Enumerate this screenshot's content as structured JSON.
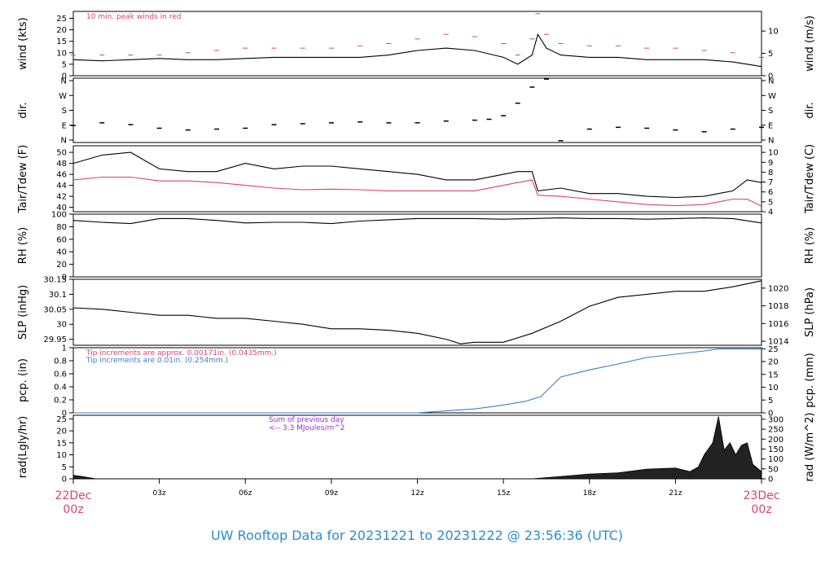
{
  "footer": {
    "title": "UW Rooftop Data for 20231221  to  20231222 @ 23:56:36  (UTC)"
  },
  "x_axis": {
    "ticks": [
      "03z",
      "06z",
      "09z",
      "12z",
      "15z",
      "18z",
      "21z"
    ],
    "start_label": [
      "22Dec",
      "00z"
    ],
    "end_label": [
      "23Dec",
      "00z"
    ]
  },
  "colors": {
    "red": "#d6456a",
    "blue": "#3a7fc6",
    "purple": "#9b30c9",
    "black": "#000000"
  },
  "chart_data": [
    {
      "type": "line",
      "id": "wind",
      "ylabel": "wind (kts)",
      "ylabel_right": "wind (m/s)",
      "ylim": [
        0,
        28
      ],
      "yticks": [
        0,
        5,
        10,
        15,
        20,
        25
      ],
      "right_ylim": [
        0,
        14.4
      ],
      "right_ticks": [
        0,
        5,
        10
      ],
      "annotations": [
        {
          "text": "10 min. peak winds in red",
          "color": "#d6456a"
        }
      ],
      "x_hours": [
        0,
        1,
        2,
        3,
        4,
        5,
        6,
        7,
        8,
        9,
        10,
        11,
        12,
        13,
        14,
        15,
        15.5,
        16,
        16.2,
        16.5,
        17,
        18,
        19,
        20,
        21,
        22,
        23,
        24
      ],
      "series": [
        {
          "name": "wind",
          "values": [
            7,
            6.5,
            7,
            7.5,
            7,
            7,
            7.5,
            8,
            8,
            8,
            8,
            9,
            11,
            12,
            11,
            8,
            5,
            9,
            18,
            12,
            9,
            8,
            8,
            7,
            7,
            7,
            6,
            4
          ]
        },
        {
          "name": "10 min. peak winds",
          "values": [
            9,
            9,
            9,
            9,
            10,
            11,
            12,
            12,
            12,
            12,
            13,
            14,
            16,
            18,
            17,
            14,
            9,
            16,
            27,
            18,
            14,
            13,
            13,
            12,
            12,
            11,
            10,
            8
          ]
        }
      ]
    },
    {
      "type": "scatter",
      "id": "dir",
      "ylabel": "dir.",
      "ylabel_right": "dir.",
      "ylim": [
        0,
        360
      ],
      "ytick_labels": [
        "N",
        "E",
        "S",
        "W",
        "N"
      ],
      "x_hours": [
        0,
        1,
        2,
        3,
        4,
        5,
        6,
        7,
        8,
        9,
        10,
        11,
        12,
        13,
        14,
        14.5,
        15,
        15.5,
        16,
        16.5,
        17,
        18,
        19,
        20,
        21,
        22,
        23,
        24
      ],
      "series": [
        {
          "name": "direction",
          "values": [
            95,
            110,
            100,
            80,
            70,
            75,
            80,
            100,
            105,
            110,
            115,
            110,
            110,
            120,
            125,
            130,
            150,
            220,
            310,
            355,
            10,
            75,
            85,
            80,
            70,
            60,
            75,
            85
          ]
        }
      ]
    },
    {
      "type": "line",
      "id": "temp",
      "ylabel": "Tair/Tdew (F)",
      "ylabel_right": "Tair/Tdew (C)",
      "ylim": [
        39.2,
        51.2
      ],
      "yticks": [
        40,
        42,
        44,
        46,
        48,
        50
      ],
      "right_ticks": [
        4,
        5,
        6,
        7,
        8,
        9,
        10
      ],
      "x_hours": [
        0,
        1,
        2,
        3,
        4,
        5,
        6,
        7,
        8,
        9,
        10,
        11,
        12,
        13,
        14,
        15,
        15.5,
        16,
        16.2,
        17,
        18,
        19,
        20,
        21,
        22,
        22.5,
        23,
        23.5,
        24
      ],
      "series": [
        {
          "name": "Tair",
          "values": [
            48,
            49.5,
            50,
            47,
            46.5,
            46.5,
            48,
            47,
            47.5,
            47.5,
            47,
            46.5,
            46,
            45,
            45,
            46,
            46.5,
            46.5,
            43,
            43.5,
            42.5,
            42.5,
            42,
            41.8,
            42,
            42.5,
            43,
            45,
            44.5
          ]
        },
        {
          "name": "Tdew",
          "values": [
            45,
            45.5,
            45.5,
            44.8,
            44.8,
            44.5,
            44,
            43.5,
            43.2,
            43.3,
            43.2,
            43,
            43,
            43,
            43,
            44,
            44.5,
            45,
            42.2,
            42,
            41.5,
            41,
            40.5,
            40.3,
            40.5,
            41,
            41.5,
            41.5,
            40.2
          ]
        }
      ]
    },
    {
      "type": "line",
      "id": "rh",
      "ylabel": "RH (%)",
      "ylabel_right": "RH (%)",
      "ylim": [
        0,
        100
      ],
      "yticks": [
        0,
        20,
        40,
        60,
        80,
        100
      ],
      "x_hours": [
        0,
        1,
        2,
        3,
        4,
        5,
        6,
        7,
        8,
        9,
        10,
        11,
        12,
        13,
        14,
        15,
        16,
        17,
        18,
        19,
        20,
        21,
        22,
        23,
        24
      ],
      "series": [
        {
          "name": "RH",
          "values": [
            90,
            87,
            85,
            93,
            93,
            90,
            86,
            87,
            87,
            85,
            89,
            91,
            93,
            93,
            93,
            92,
            93,
            94,
            93,
            93,
            92,
            93,
            94,
            93,
            86
          ]
        }
      ]
    },
    {
      "type": "line",
      "id": "slp",
      "ylabel": "SLP (inHg)",
      "ylabel_right": "SLP (hPa)",
      "ylim": [
        29.93,
        30.15
      ],
      "yticks": [
        29.95,
        30.0,
        30.05,
        30.1,
        30.15
      ],
      "right_ticks": [
        1014,
        1016,
        1018,
        1020
      ],
      "x_hours": [
        0,
        1,
        2,
        3,
        4,
        5,
        6,
        7,
        8,
        9,
        10,
        11,
        12,
        13,
        13.5,
        14,
        15,
        16,
        17,
        18,
        19,
        20,
        21,
        22,
        23,
        24
      ],
      "series": [
        {
          "name": "SLP",
          "values": [
            30.055,
            30.05,
            30.04,
            30.03,
            30.03,
            30.02,
            30.02,
            30.01,
            30.0,
            29.985,
            29.985,
            29.98,
            29.97,
            29.95,
            29.935,
            29.94,
            29.94,
            29.97,
            30.01,
            30.06,
            30.09,
            30.1,
            30.11,
            30.11,
            30.125,
            30.145
          ]
        }
      ]
    },
    {
      "type": "line",
      "id": "pcp",
      "ylabel": "pcp. (in)",
      "ylabel_right": "pcp. (mm)",
      "ylim": [
        0,
        1.0
      ],
      "yticks": [
        0.0,
        0.2,
        0.4,
        0.6,
        0.8,
        1.0
      ],
      "right_ticks": [
        0,
        5,
        10,
        15,
        20,
        25
      ],
      "annotations": [
        {
          "text": "Tip increments are approx. 0.00171in. (0.0435mm.)",
          "color": "#d6456a"
        },
        {
          "text": "Tip increments are 0.01in. (0.254mm.)",
          "color": "#3a7fc6"
        }
      ],
      "x_hours": [
        0,
        12,
        13,
        14,
        15,
        15.8,
        16.3,
        16.7,
        17,
        18,
        19,
        20,
        21,
        22,
        22.5,
        23,
        24
      ],
      "series": [
        {
          "name": "precip",
          "values": [
            0,
            0,
            0.03,
            0.06,
            0.12,
            0.18,
            0.25,
            0.42,
            0.55,
            0.66,
            0.75,
            0.85,
            0.9,
            0.95,
            0.98,
            0.98,
            0.98
          ]
        }
      ]
    },
    {
      "type": "area",
      "id": "rad",
      "ylabel": "rad(Lgly/hr)",
      "ylabel_right": "rad (W/m^2)",
      "ylim": [
        0,
        26.5
      ],
      "yticks": [
        0,
        5,
        10,
        15,
        20,
        25
      ],
      "right_ticks": [
        0,
        50,
        100,
        150,
        200,
        250,
        300
      ],
      "annotations": [
        {
          "text": "Sum of previous day",
          "color": "#9b30c9"
        },
        {
          "text": "<-- 3.3 MJoules/m^2",
          "color": "#9b30c9"
        }
      ],
      "x_hours": [
        0,
        0.3,
        0.8,
        1,
        16,
        17,
        18,
        19,
        20,
        21,
        21.5,
        21.8,
        22,
        22.3,
        22.5,
        22.7,
        22.9,
        23.1,
        23.3,
        23.5,
        23.7,
        24
      ],
      "series": [
        {
          "name": "radiation",
          "values": [
            1.5,
            1.0,
            0,
            0,
            0,
            1,
            2,
            2.5,
            4,
            4.5,
            3,
            5,
            10,
            15,
            26,
            12,
            15,
            10,
            14,
            15,
            6,
            3
          ]
        }
      ]
    }
  ]
}
